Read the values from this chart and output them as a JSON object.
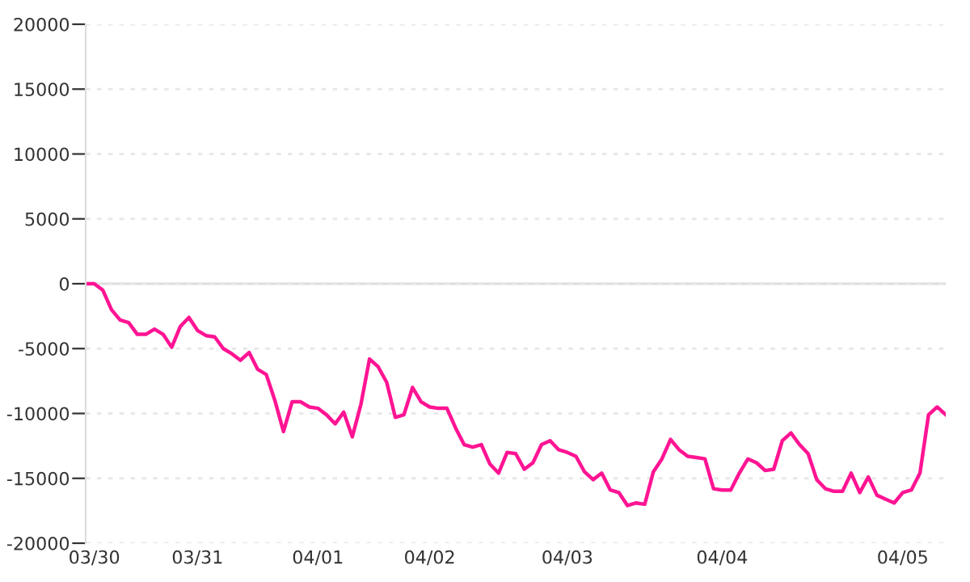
{
  "chart_data": {
    "type": "line",
    "categories": [
      null,
      "03/30",
      null,
      null,
      null,
      null,
      null,
      null,
      null,
      null,
      null,
      null,
      null,
      "03/31",
      null,
      null,
      null,
      null,
      null,
      null,
      null,
      null,
      null,
      null,
      null,
      null,
      null,
      "04/01",
      null,
      null,
      null,
      null,
      null,
      null,
      null,
      null,
      null,
      null,
      null,
      null,
      "04/02",
      null,
      null,
      null,
      null,
      null,
      null,
      null,
      null,
      null,
      null,
      null,
      null,
      null,
      null,
      null,
      "04/03",
      null,
      null,
      null,
      null,
      null,
      null,
      null,
      null,
      null,
      null,
      null,
      null,
      null,
      null,
      null,
      null,
      null,
      "04/04",
      null,
      null,
      null,
      null,
      null,
      null,
      null,
      null,
      null,
      null,
      null,
      null,
      null,
      null,
      null,
      null,
      null,
      null,
      null,
      null,
      "04/05",
      null,
      null,
      null,
      null,
      null
    ],
    "series": [
      {
        "color": "#ff1493",
        "values": [
          0,
          0,
          -500,
          -2000,
          -2800,
          -3000,
          -3900,
          -3900,
          -3500,
          -3900,
          -4900,
          -3300,
          -2600,
          -3600,
          -4000,
          -4100,
          -5000,
          -5400,
          -5900,
          -5300,
          -6600,
          -7000,
          -9000,
          -11400,
          -9100,
          -9100,
          -9500,
          -9600,
          -10100,
          -10800,
          -9900,
          -11800,
          -9300,
          -5800,
          -6400,
          -7600,
          -10300,
          -10100,
          -8000,
          -9100,
          -9500,
          -9600,
          -9600,
          -11100,
          -12400,
          -12600,
          -12400,
          -13900,
          -14600,
          -13000,
          -13100,
          -14300,
          -13800,
          -12400,
          -12100,
          -12800,
          -13000,
          -13300,
          -14500,
          -15100,
          -14600,
          -15900,
          -16100,
          -17100,
          -16900,
          -17000,
          -14500,
          -13500,
          -12000,
          -12800,
          -13300,
          -13400,
          -13500,
          -15800,
          -15900,
          -15900,
          -14600,
          -13500,
          -13800,
          -14400,
          -14300,
          -12100,
          -11500,
          -12400,
          -13100,
          -15100,
          -15800,
          -16000,
          -16000,
          -14600,
          -16100,
          -14900,
          -16300,
          -16600,
          -16900,
          -16100,
          -15900,
          -14600,
          -10100,
          -9500,
          -10100
        ]
      }
    ],
    "ylim": [
      -20000,
      20000
    ],
    "yticks": [
      -20000,
      -15000,
      -10000,
      -5000,
      0,
      5000,
      10000,
      15000,
      20000
    ],
    "grid": "y",
    "ref_lines": [
      {
        "axis": "y",
        "value": 0,
        "color": "#dddddd",
        "line_style": "solid"
      }
    ],
    "marker": "none",
    "line_style": "solid"
  }
}
